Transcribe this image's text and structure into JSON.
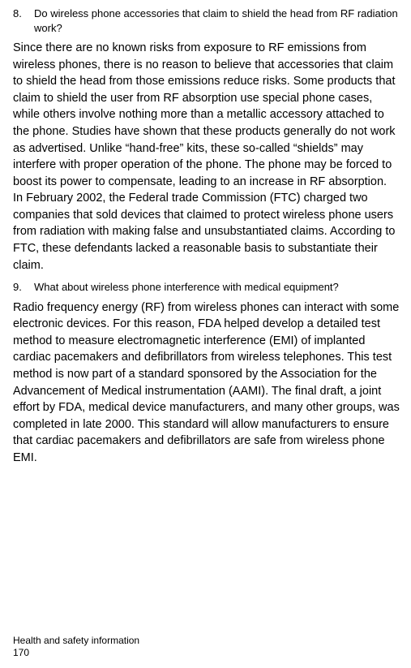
{
  "q8": {
    "number": "8.",
    "question": "Do wireless phone accessories that claim to shield the head from RF radiation work?",
    "answer": "Since there are no known risks from exposure to RF emissions from wireless phones, there is no reason to believe that accessories that claim to shield the head from those emissions reduce risks. Some products that claim to shield the user from RF absorption use special phone cases, while others involve nothing more than a metallic accessory attached to the phone. Studies have shown that these products generally do not work as advertised. Unlike “hand-free” kits, these so-called “shields” may interfere with proper operation of the phone. The phone may be forced to boost its power to compensate, leading to an increase in RF absorption. In February 2002, the Federal trade Commission (FTC) charged two companies that sold devices that claimed to protect wireless phone users from radiation with making false and unsubstantiated claims. According to FTC, these defendants lacked a reasonable basis to substantiate their claim."
  },
  "q9": {
    "number": "9.",
    "question": "What about wireless phone interference with medical equipment?",
    "answer": "Radio frequency energy (RF) from wireless phones can interact with some electronic devices. For this reason, FDA helped develop a detailed test method to measure electromagnetic interference (EMI) of implanted cardiac pacemakers and defibrillators from wireless telephones. This test method is now part of a standard sponsored by the Association for the Advancement of Medical instrumentation (AAMI). The final draft, a joint effort by FDA, medical device manufacturers, and many other groups, was completed in late 2000. This standard will allow manufacturers to ensure that cardiac pacemakers and defibrillators are safe from wireless phone EMI."
  },
  "footer": {
    "section": "Health and safety information",
    "page": "170"
  }
}
